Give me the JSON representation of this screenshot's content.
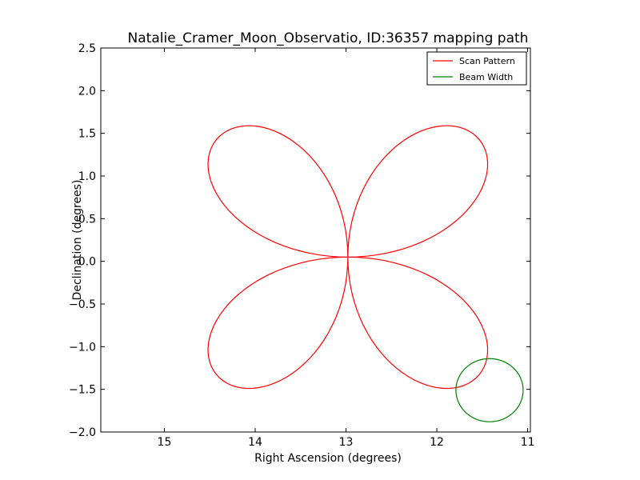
{
  "chart_data": {
    "type": "line",
    "title": "Natalie_Cramer_Moon_Observatio, ID:36357 mapping path",
    "xlabel": "Right Ascension (degrees)",
    "ylabel": "Declination (degrees)",
    "xlim": [
      15.7,
      10.97
    ],
    "ylim": [
      -2.0,
      2.5
    ],
    "x_ticks": [
      15,
      14,
      13,
      12,
      11
    ],
    "x_tick_labels": [
      "15",
      "14",
      "13",
      "12",
      "11"
    ],
    "y_ticks": [
      -2.0,
      -1.5,
      -1.0,
      -0.5,
      0.0,
      0.5,
      1.0,
      1.5,
      2.0,
      2.5
    ],
    "y_tick_labels": [
      "−2.0",
      "−1.5",
      "−1.0",
      "−0.5",
      "0.0",
      "0.5",
      "1.0",
      "1.5",
      "2.0",
      "2.5"
    ],
    "grid": false,
    "legend_position": "upper right",
    "series": [
      {
        "name": "Scan Pattern",
        "color": "#ff0000",
        "kind": "rose",
        "center_ra": 12.98,
        "center_dec": 0.05,
        "max_radius": 2.0,
        "petals": 4,
        "points": 240,
        "ra_scale": 1.0
      },
      {
        "name": "Beam Width",
        "color": "#008000",
        "kind": "circle",
        "center_ra": 11.42,
        "center_dec": -1.51,
        "radius": 0.37
      }
    ]
  }
}
